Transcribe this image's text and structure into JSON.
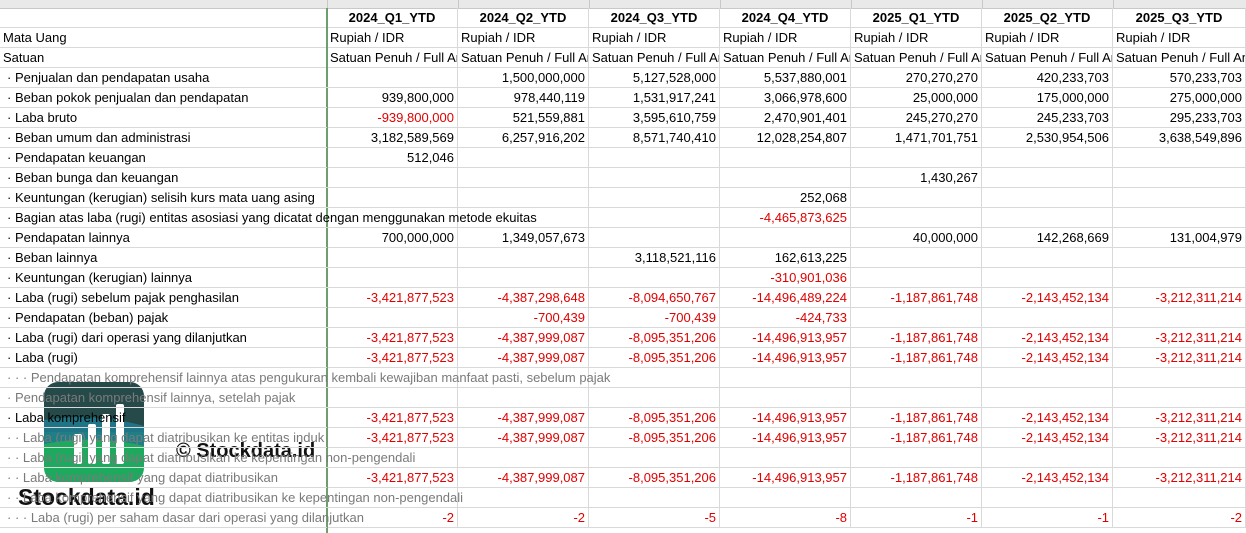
{
  "headers": [
    "2024_Q1_YTD",
    "2024_Q2_YTD",
    "2024_Q3_YTD",
    "2024_Q4_YTD",
    "2025_Q1_YTD",
    "2025_Q2_YTD",
    "2025_Q3_YTD"
  ],
  "meta_rows": [
    {
      "label": "Mata Uang",
      "value": "Rupiah / IDR"
    },
    {
      "label": "Satuan",
      "value": "Satuan Penuh / Full Amount"
    }
  ],
  "rows": [
    {
      "label": "· Penjualan dan pendapatan usaha",
      "values": [
        "",
        "1,500,000,000",
        "5,127,528,000",
        "5,537,880,001",
        "270,270,270",
        "420,233,703",
        "570,233,703"
      ]
    },
    {
      "label": "· Beban pokok penjualan dan pendapatan",
      "values": [
        "939,800,000",
        "978,440,119",
        "1,531,917,241",
        "3,066,978,600",
        "25,000,000",
        "175,000,000",
        "275,000,000"
      ]
    },
    {
      "label": "· Laba bruto",
      "values": [
        "-939,800,000",
        "521,559,881",
        "3,595,610,759",
        "2,470,901,401",
        "245,270,270",
        "245,233,703",
        "295,233,703"
      ]
    },
    {
      "label": "· Beban umum dan administrasi",
      "values": [
        "3,182,589,569",
        "6,257,916,202",
        "8,571,740,410",
        "12,028,254,807",
        "1,471,701,751",
        "2,530,954,506",
        "3,638,549,896"
      ]
    },
    {
      "label": "· Pendapatan keuangan",
      "values": [
        "512,046",
        "",
        "",
        "",
        "",
        "",
        ""
      ]
    },
    {
      "label": "· Beban bunga dan keuangan",
      "values": [
        "",
        "",
        "",
        "",
        "1,430,267",
        "",
        ""
      ]
    },
    {
      "label": "· Keuntungan (kerugian) selisih kurs mata uang asing",
      "values": [
        "",
        "",
        "",
        "252,068",
        "",
        "",
        ""
      ]
    },
    {
      "label": "· Bagian atas laba (rugi) entitas asosiasi yang dicatat dengan menggunakan metode ekuitas",
      "values": [
        "",
        "",
        "",
        "-4,465,873,625",
        "",
        "",
        ""
      ]
    },
    {
      "label": "· Pendapatan lainnya",
      "values": [
        "700,000,000",
        "1,349,057,673",
        "",
        "",
        "40,000,000",
        "142,268,669",
        "131,004,979"
      ]
    },
    {
      "label": "· Beban lainnya",
      "values": [
        "",
        "",
        "3,118,521,116",
        "162,613,225",
        "",
        "",
        ""
      ]
    },
    {
      "label": "· Keuntungan (kerugian) lainnya",
      "values": [
        "",
        "",
        "",
        "-310,901,036",
        "",
        "",
        ""
      ]
    },
    {
      "label": "· Laba (rugi) sebelum pajak penghasilan",
      "values": [
        "-3,421,877,523",
        "-4,387,298,648",
        "-8,094,650,767",
        "-14,496,489,224",
        "-1,187,861,748",
        "-2,143,452,134",
        "-3,212,311,214"
      ]
    },
    {
      "label": "· Pendapatan (beban) pajak",
      "values": [
        "",
        "-700,439",
        "-700,439",
        "-424,733",
        "",
        "",
        ""
      ]
    },
    {
      "label": "· Laba (rugi) dari operasi yang dilanjutkan",
      "values": [
        "-3,421,877,523",
        "-4,387,999,087",
        "-8,095,351,206",
        "-14,496,913,957",
        "-1,187,861,748",
        "-2,143,452,134",
        "-3,212,311,214"
      ]
    },
    {
      "label": "· Laba (rugi)",
      "values": [
        "-3,421,877,523",
        "-4,387,999,087",
        "-8,095,351,206",
        "-14,496,913,957",
        "-1,187,861,748",
        "-2,143,452,134",
        "-3,212,311,214"
      ]
    },
    {
      "label": "· · · Pendapatan komprehensif lainnya atas pengukuran kembali kewajiban manfaat pasti, sebelum pajak",
      "values": [
        "",
        "",
        "",
        "",
        "",
        "",
        ""
      ],
      "gray": true
    },
    {
      "label": "· Pendapatan komprehensif lainnya, setelah pajak",
      "values": [
        "",
        "",
        "",
        "",
        "",
        "",
        ""
      ],
      "gray": true
    },
    {
      "label": "· Laba komprehensif",
      "values": [
        "-3,421,877,523",
        "-4,387,999,087",
        "-8,095,351,206",
        "-14,496,913,957",
        "-1,187,861,748",
        "-2,143,452,134",
        "-3,212,311,214"
      ]
    },
    {
      "label": "· · Laba (rugi) yang dapat diatribusikan ke entitas induk",
      "values": [
        "-3,421,877,523",
        "-4,387,999,087",
        "-8,095,351,206",
        "-14,496,913,957",
        "-1,187,861,748",
        "-2,143,452,134",
        "-3,212,311,214"
      ],
      "gray": true
    },
    {
      "label": "· · Laba (rugi) yang dapat diatribusikan ke kepentingan non-pengendali",
      "values": [
        "",
        "",
        "",
        "",
        "",
        "",
        ""
      ],
      "gray": true
    },
    {
      "label": "· · Laba komprehensif yang dapat diatribusikan",
      "values": [
        "-3,421,877,523",
        "-4,387,999,087",
        "-8,095,351,206",
        "-14,496,913,957",
        "-1,187,861,748",
        "-2,143,452,134",
        "-3,212,311,214"
      ],
      "gray": true
    },
    {
      "label": "· · Laba komprehensif yang dapat diatribusikan ke kepentingan non-pengendali",
      "values": [
        "",
        "",
        "",
        "",
        "",
        "",
        ""
      ],
      "gray": true
    },
    {
      "label": "· · · Laba (rugi) per saham dasar dari operasi yang dilanjutkan",
      "values": [
        "-2",
        "-2",
        "-5",
        "-8",
        "-1",
        "-1",
        "-2"
      ],
      "gray": true
    }
  ],
  "watermark": {
    "copyright": "© Stockdata.id",
    "brand": "Stockdata.id"
  },
  "colors": {
    "negative": "#e00000",
    "gridline": "#d9d9d9",
    "frozen_pane": "#6e9e6e",
    "logo_dark": "#264a4a",
    "logo_green": "#1daa5e",
    "logo_teal": "#1f7a8c"
  }
}
